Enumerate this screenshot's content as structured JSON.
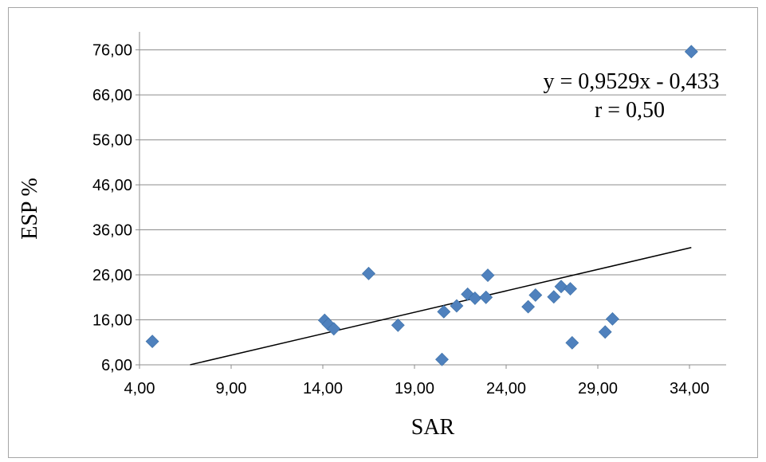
{
  "chart_data": {
    "type": "scatter",
    "xlabel": "SAR",
    "ylabel": "ESP %",
    "xlim": [
      4,
      36
    ],
    "ylim": [
      6,
      80
    ],
    "x_ticks": [
      "4,00",
      "9,00",
      "14,00",
      "19,00",
      "24,00",
      "29,00",
      "34,00"
    ],
    "x_tick_values": [
      4,
      9,
      14,
      19,
      24,
      29,
      34
    ],
    "y_ticks": [
      "6,00",
      "16,00",
      "26,00",
      "36,00",
      "46,00",
      "56,00",
      "66,00",
      "76,00"
    ],
    "y_tick_values": [
      6,
      16,
      26,
      36,
      46,
      56,
      66,
      76
    ],
    "grid": "horizontal",
    "legend": "none",
    "marker_color": "#4f81bd",
    "points": [
      {
        "x": 4.7,
        "y": 11.2
      },
      {
        "x": 14.1,
        "y": 15.9
      },
      {
        "x": 14.3,
        "y": 15.0
      },
      {
        "x": 14.6,
        "y": 14.0
      },
      {
        "x": 16.5,
        "y": 26.3
      },
      {
        "x": 18.1,
        "y": 14.8
      },
      {
        "x": 20.5,
        "y": 7.2
      },
      {
        "x": 20.6,
        "y": 17.8
      },
      {
        "x": 21.3,
        "y": 19.1
      },
      {
        "x": 21.9,
        "y": 21.7
      },
      {
        "x": 22.3,
        "y": 20.8
      },
      {
        "x": 22.9,
        "y": 21.0
      },
      {
        "x": 23.0,
        "y": 25.9
      },
      {
        "x": 25.2,
        "y": 18.9
      },
      {
        "x": 25.6,
        "y": 21.5
      },
      {
        "x": 26.6,
        "y": 21.1
      },
      {
        "x": 27.0,
        "y": 23.4
      },
      {
        "x": 27.5,
        "y": 22.9
      },
      {
        "x": 27.6,
        "y": 10.9
      },
      {
        "x": 29.4,
        "y": 13.3
      },
      {
        "x": 29.8,
        "y": 16.2
      },
      {
        "x": 34.1,
        "y": 75.6
      }
    ],
    "trendline": {
      "slope": 0.9529,
      "intercept": -0.433,
      "x_range": [
        6.76,
        34.1
      ],
      "equation_label": "y = 0,9529x - 0,433",
      "r_label": "r = 0,50"
    }
  }
}
